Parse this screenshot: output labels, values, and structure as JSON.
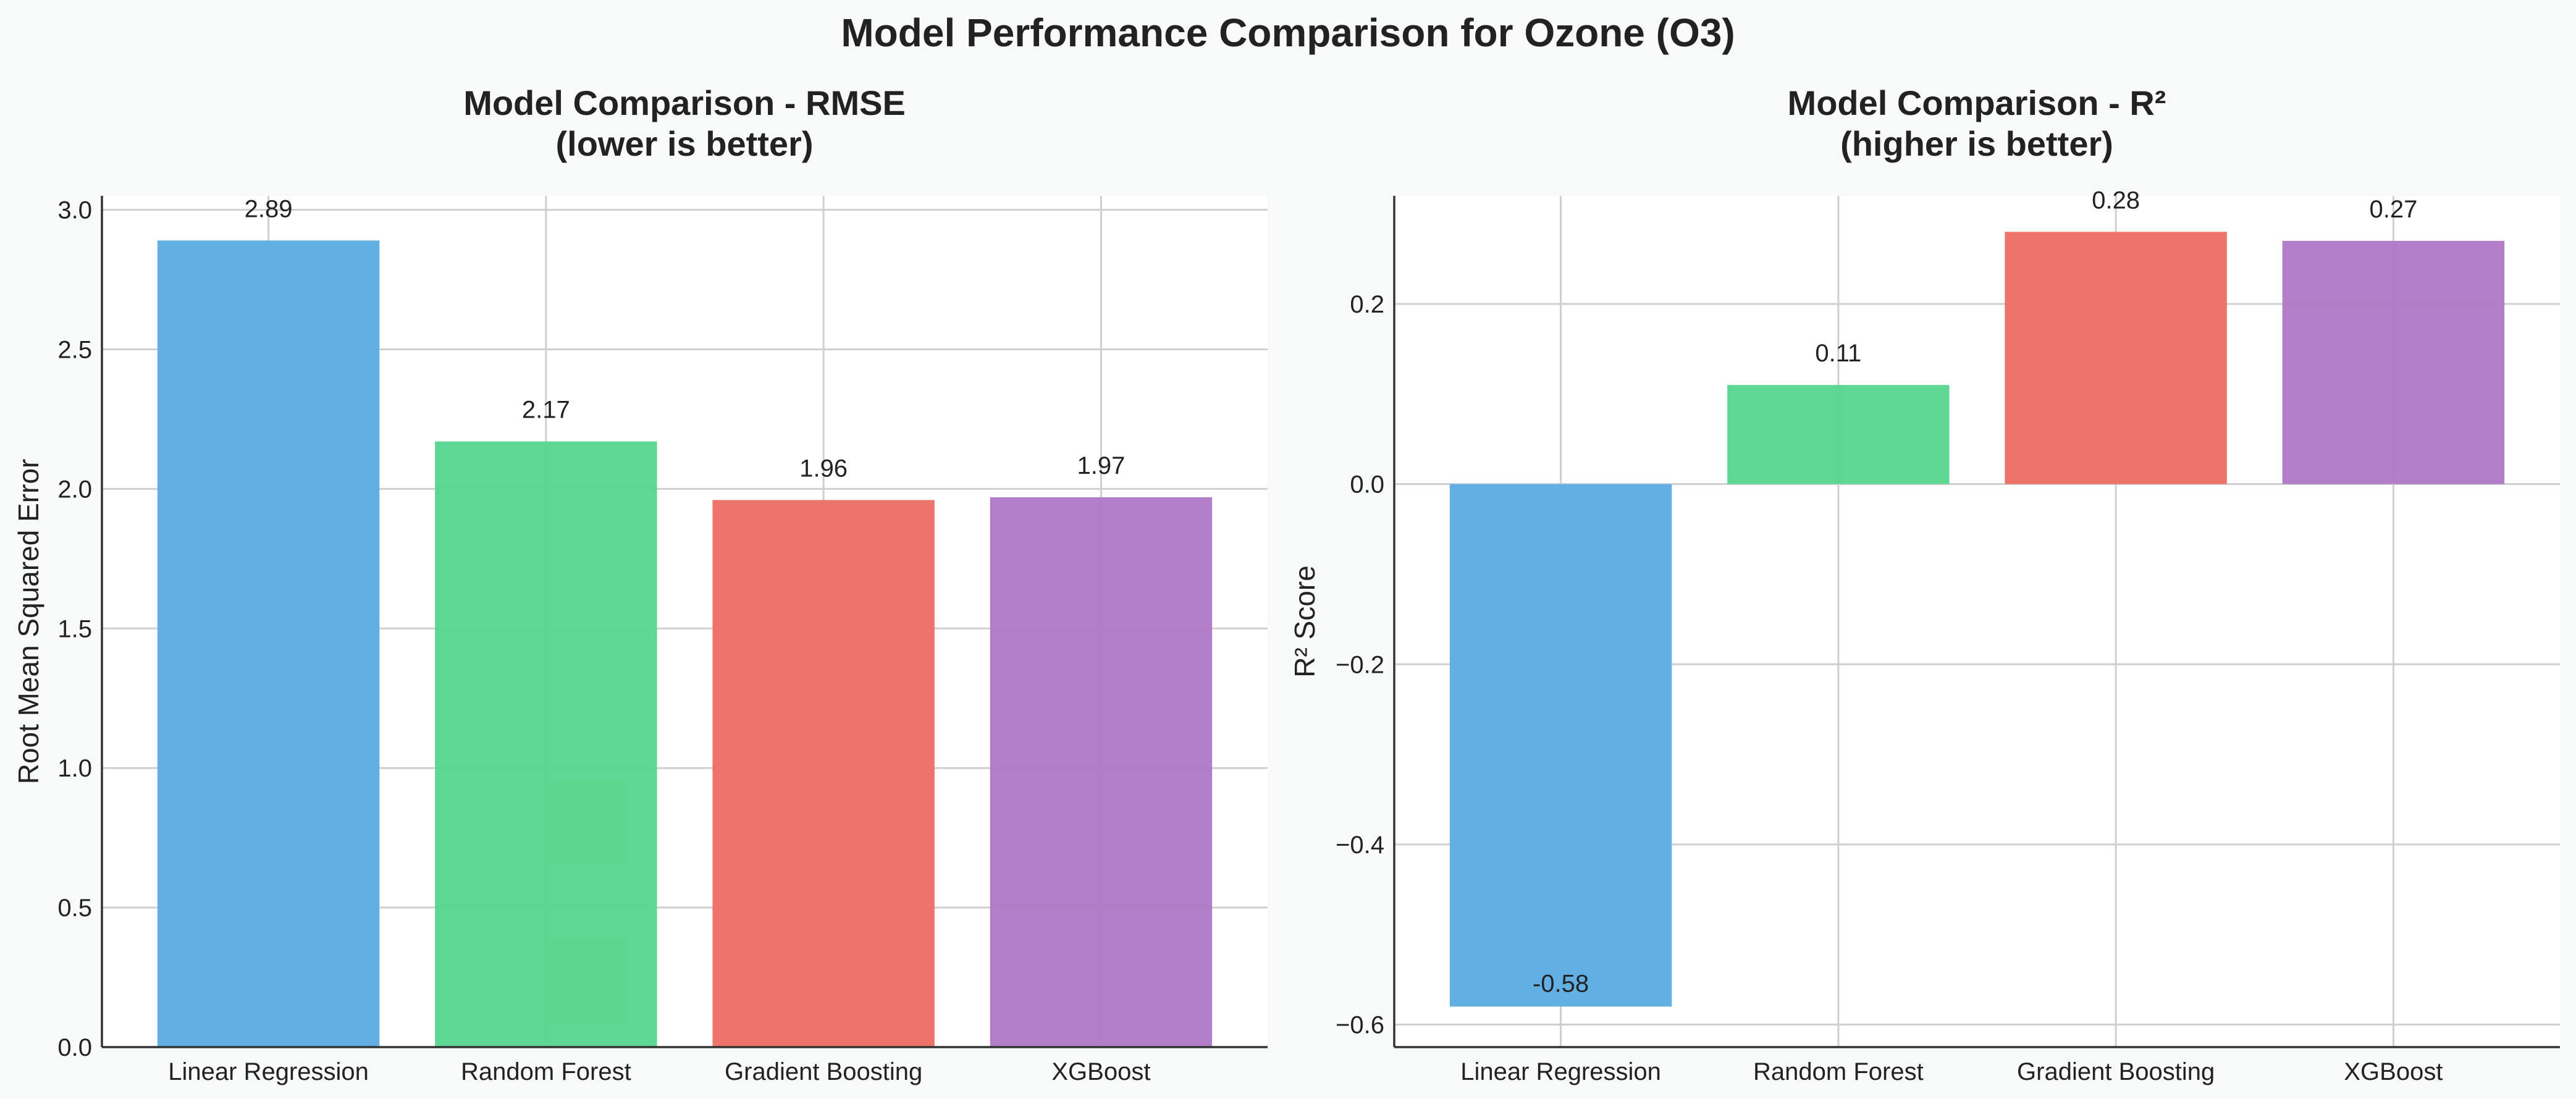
{
  "figure": {
    "title": "Model Performance Comparison for Ozone (O3)"
  },
  "chart_data": [
    {
      "type": "bar",
      "title": "Model Comparison - RMSE",
      "subtitle": "(lower is better)",
      "xlabel": "",
      "ylabel": "Root Mean Squared Error",
      "categories": [
        "Linear Regression",
        "Random Forest",
        "Gradient Boosting",
        "XGBoost"
      ],
      "values": [
        2.89,
        2.17,
        1.96,
        1.97
      ],
      "value_labels": [
        "2.89",
        "2.17",
        "1.96",
        "1.97"
      ],
      "colors": [
        "#5dade2",
        "#58d68d",
        "#ec7063",
        "#af7ac5"
      ],
      "ylim": [
        0,
        3.05
      ],
      "yticks": [
        0.0,
        0.5,
        1.0,
        1.5,
        2.0,
        2.5,
        3.0
      ],
      "ytick_labels": [
        "0.0",
        "0.5",
        "1.0",
        "1.5",
        "2.0",
        "2.5",
        "3.0"
      ],
      "grid": true
    },
    {
      "type": "bar",
      "title": "Model Comparison - R²",
      "subtitle": "(higher is better)",
      "xlabel": "",
      "ylabel": "R² Score",
      "categories": [
        "Linear Regression",
        "Random Forest",
        "Gradient Boosting",
        "XGBoost"
      ],
      "values": [
        -0.58,
        0.11,
        0.28,
        0.27
      ],
      "value_labels": [
        "-0.58",
        "0.11",
        "0.28",
        "0.27"
      ],
      "colors": [
        "#5dade2",
        "#58d68d",
        "#ec7063",
        "#af7ac5"
      ],
      "ylim": [
        -0.625,
        0.32
      ],
      "yticks": [
        -0.6,
        -0.4,
        -0.2,
        0.0,
        0.2
      ],
      "ytick_labels": [
        "−0.6",
        "−0.4",
        "−0.2",
        "0.0",
        "0.2"
      ],
      "grid": true
    }
  ]
}
